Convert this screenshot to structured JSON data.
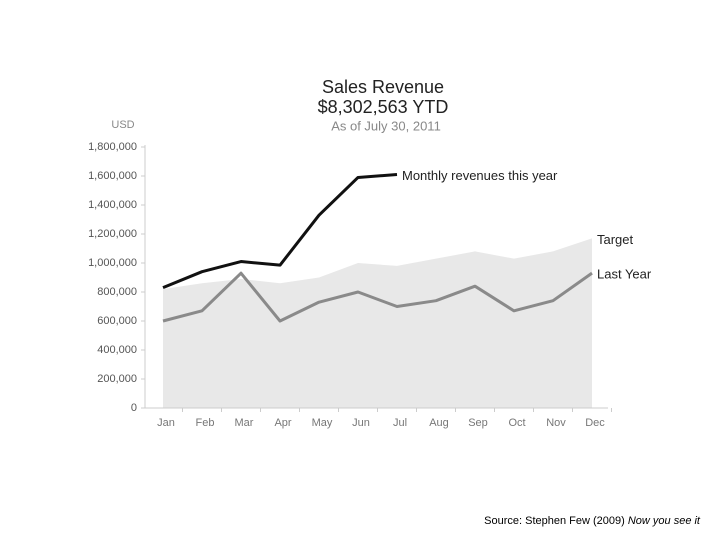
{
  "chart_data": {
    "type": "line",
    "title": "Sales Revenue",
    "subtitle": "$8,302,563 YTD",
    "note": "As of July 30, 2011",
    "y_label": "USD",
    "source": "Source: Stephen Few (2009)",
    "source_work": "Now you see it",
    "categories": [
      "Jan",
      "Feb",
      "Mar",
      "Apr",
      "May",
      "Jun",
      "Jul",
      "Aug",
      "Sep",
      "Oct",
      "Nov",
      "Dec"
    ],
    "series": [
      {
        "name": "Target",
        "color": "#e8e8e8",
        "style": "area",
        "values": [
          820000,
          860000,
          890000,
          860000,
          900000,
          1000000,
          980000,
          1030000,
          1080000,
          1030000,
          1080000,
          1170000
        ]
      },
      {
        "name": "Last Year",
        "color": "#8a8a8a",
        "style": "line",
        "values": [
          600000,
          670000,
          930000,
          600000,
          730000,
          800000,
          700000,
          740000,
          840000,
          670000,
          740000,
          930000
        ]
      },
      {
        "name": "Monthly revenues this year",
        "color": "#111111",
        "style": "line",
        "values": [
          830000,
          940000,
          1010000,
          985000,
          1330000,
          1590000,
          1610000,
          null,
          null,
          null,
          null,
          null
        ]
      }
    ],
    "ylim": [
      0,
      1800000
    ],
    "yticks": [
      0,
      {
        "value": 200000,
        "label": "200,000"
      },
      {
        "value": 400000,
        "label": "400,000"
      },
      {
        "value": 600000,
        "label": "600,000"
      },
      {
        "value": 800000,
        "label": "800,000"
      },
      {
        "value": 1000000,
        "label": "1,000,000"
      },
      {
        "value": 1200000,
        "label": "1,200,000"
      },
      {
        "value": 1400000,
        "label": "1,400,000"
      },
      {
        "value": 1600000,
        "label": "1,600,000"
      },
      {
        "value": 1800000,
        "label": "1,800,000"
      }
    ]
  }
}
